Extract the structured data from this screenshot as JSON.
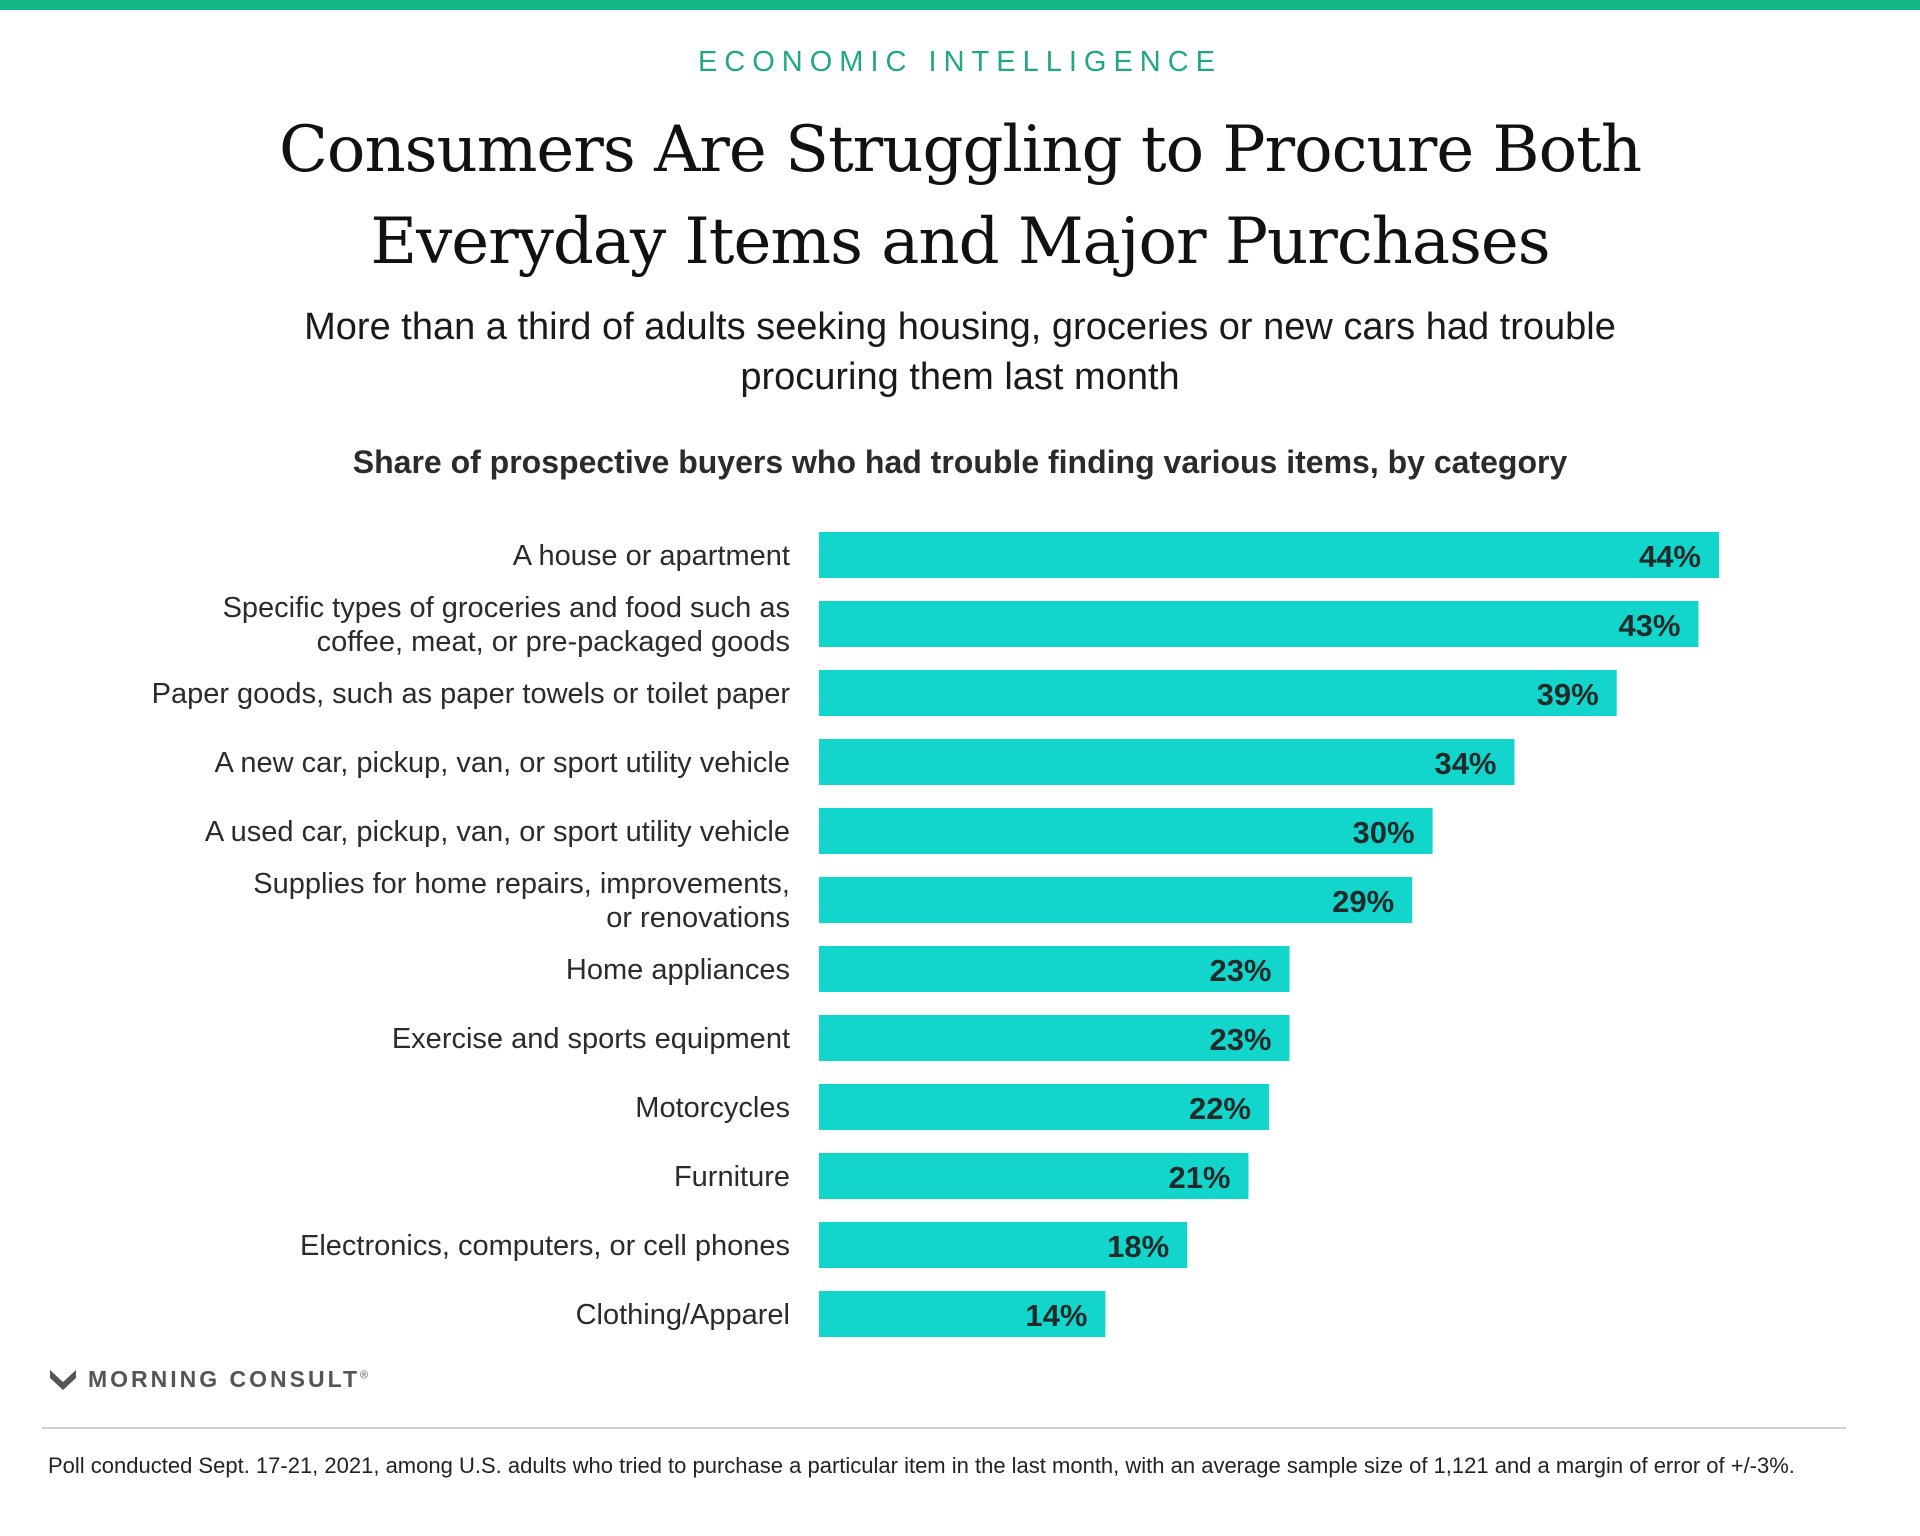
{
  "header": {
    "kicker": "ECONOMIC INTELLIGENCE",
    "title": "Consumers Are Struggling to Procure Both Everyday Items and Major Purchases",
    "subtitle": "More than a third of adults seeking housing, groceries or new cars had trouble procuring them last month"
  },
  "colors": {
    "accent_rule": "#14b887",
    "kicker_text": "#1fa883",
    "bar": "#12d6cc",
    "logo": "#555555"
  },
  "chart_data": {
    "type": "bar",
    "orientation": "horizontal",
    "title": "Share of prospective buyers who had trouble finding various items, by category",
    "categories": [
      [
        "A house or apartment"
      ],
      [
        "Specific types of groceries and food such as",
        "coffee, meat, or pre-packaged goods"
      ],
      [
        "Paper goods, such as paper towels or toilet paper"
      ],
      [
        "A new car, pickup, van, or sport utility vehicle"
      ],
      [
        "A used car, pickup, van, or sport utility vehicle"
      ],
      [
        "Supplies for home repairs, improvements,",
        "or renovations"
      ],
      [
        "Home appliances"
      ],
      [
        "Exercise and sports equipment"
      ],
      [
        "Motorcycles"
      ],
      [
        "Furniture"
      ],
      [
        "Electronics, computers, or cell phones"
      ],
      [
        "Clothing/Apparel"
      ]
    ],
    "values": [
      44,
      43,
      39,
      34,
      30,
      29,
      23,
      23,
      22,
      21,
      18,
      14
    ],
    "value_labels": [
      "44%",
      "43%",
      "39%",
      "34%",
      "30%",
      "29%",
      "23%",
      "23%",
      "22%",
      "21%",
      "18%",
      "14%"
    ],
    "xlim": [
      0,
      44
    ],
    "grid": false,
    "legend": "none",
    "data_labels": "inside-end"
  },
  "brand": {
    "logo_icon": "m-chevron-icon",
    "name": "MORNING CONSULT",
    "mark": "®"
  },
  "footnote": "Poll conducted Sept. 17-21, 2021, among U.S. adults who tried to purchase a particular item in the last month, with an average sample size of 1,121 and a margin of error of +/-3%."
}
